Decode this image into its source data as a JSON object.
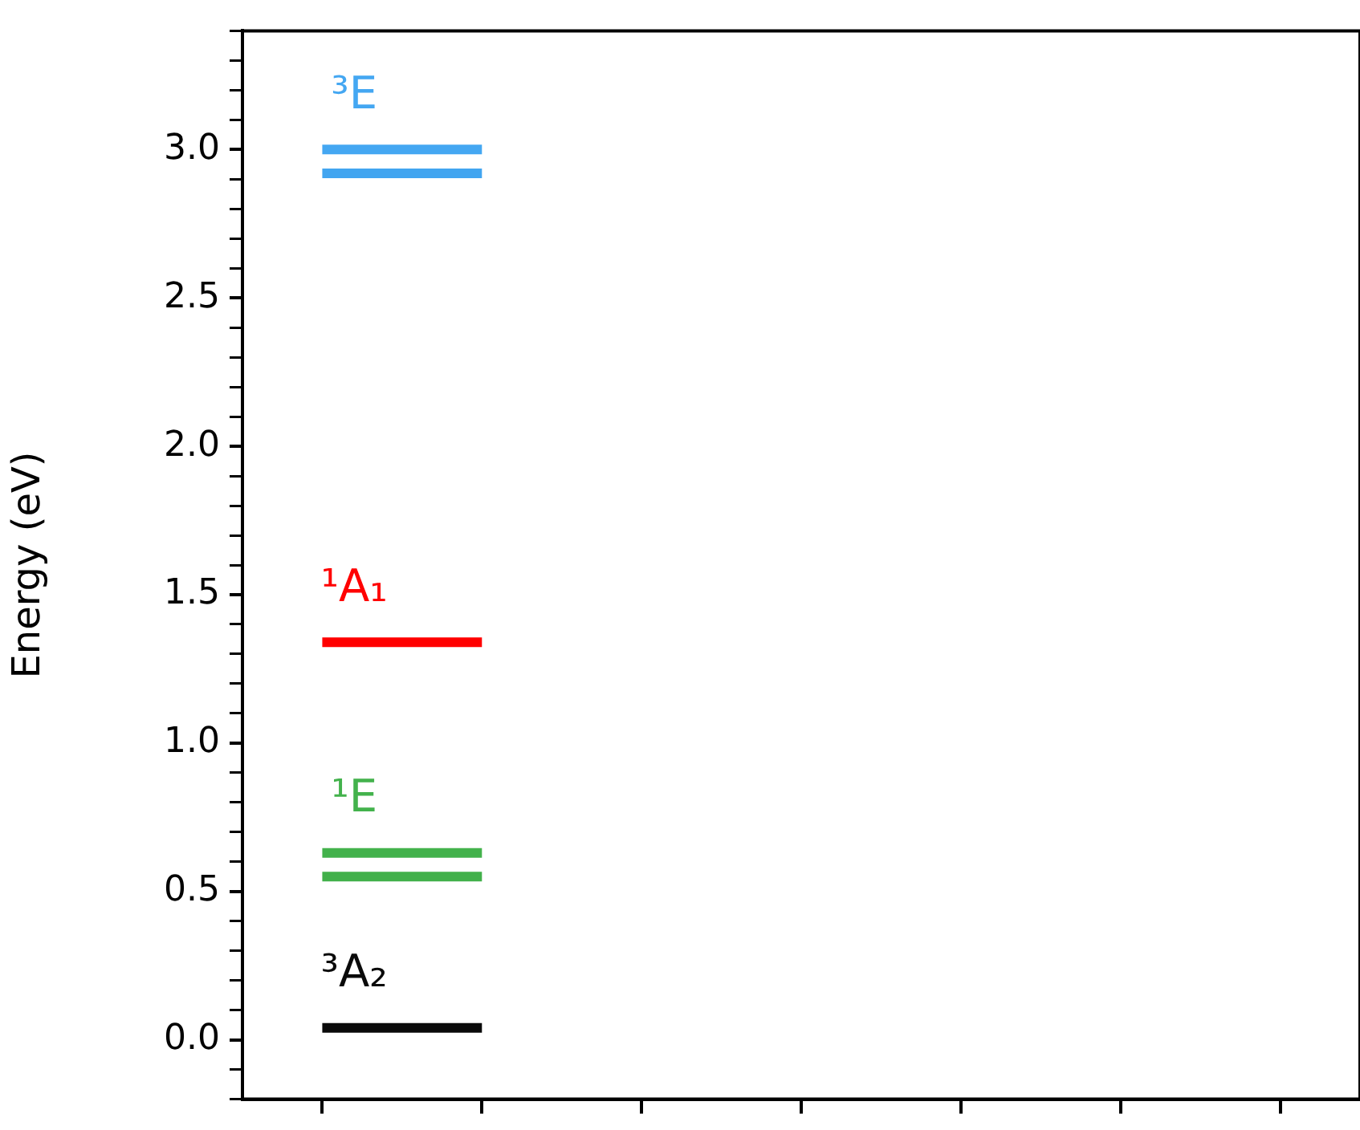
{
  "chart_data": {
    "type": "line",
    "ylabel": "Energy (eV)",
    "ylim": [
      -0.2,
      3.4
    ],
    "categories": [
      null,
      null,
      null,
      null,
      null,
      null,
      null
    ],
    "yticks": [
      {
        "value": -0.2,
        "label": null
      },
      {
        "value": -0.1,
        "label": null
      },
      {
        "value": 0,
        "label": "0.0"
      },
      {
        "value": 0.1,
        "label": null
      },
      {
        "value": 0.2,
        "label": null
      },
      {
        "value": 0.3,
        "label": null
      },
      {
        "value": 0.4,
        "label": null
      },
      0.5,
      {
        "value": 0.6,
        "label": null
      },
      {
        "value": 0.7,
        "label": null
      },
      {
        "value": 0.8,
        "label": null
      },
      {
        "value": 0.9,
        "label": null
      },
      {
        "value": 1,
        "label": "1.0"
      },
      {
        "value": 1.1,
        "label": null
      },
      {
        "value": 1.2,
        "label": null
      },
      {
        "value": 1.3,
        "label": null
      },
      {
        "value": 1.4,
        "label": null
      },
      1.5,
      {
        "value": 1.6,
        "label": null
      },
      {
        "value": 1.7,
        "label": null
      },
      {
        "value": 1.8,
        "label": null
      },
      {
        "value": 1.9,
        "label": null
      },
      {
        "value": 2,
        "label": "2.0"
      },
      {
        "value": 2.1,
        "label": null
      },
      {
        "value": 2.2,
        "label": null
      },
      {
        "value": 2.3,
        "label": null
      },
      {
        "value": 2.4,
        "label": null
      },
      2.5,
      {
        "value": 2.6,
        "label": null
      },
      {
        "value": 2.7,
        "label": null
      },
      {
        "value": 2.8,
        "label": null
      },
      {
        "value": 2.9,
        "label": null
      },
      {
        "value": 3,
        "label": "3.0"
      },
      {
        "value": 3.1,
        "label": null
      },
      {
        "value": 3.2,
        "label": null
      },
      {
        "value": 3.3,
        "label": null
      },
      {
        "value": 3.4,
        "label": null
      }
    ],
    "tick_labels": "y",
    "marker": "none",
    "series": [
      {
        "color": "#0a0a0a",
        "values": [
          0.04,
          0.04,
          null,
          null,
          null,
          null,
          null
        ]
      },
      {
        "color": "#43b24c",
        "values": [
          0.63,
          0.63,
          null,
          null,
          null,
          null,
          null
        ]
      },
      {
        "color": "#41b04a",
        "values": [
          0.55,
          0.55,
          null,
          null,
          null,
          null,
          null
        ]
      },
      {
        "color": "#ff0000",
        "values": [
          1.34,
          1.34,
          null,
          null,
          null,
          null,
          null
        ]
      },
      {
        "color": "#44a7f2",
        "values": [
          3.0,
          3.0,
          null,
          null,
          null,
          null,
          null
        ]
      },
      {
        "color": "#42a5f0",
        "values": [
          2.92,
          2.92,
          null,
          null,
          null,
          null,
          null
        ]
      }
    ],
    "annotations": [
      "³A₂",
      "¹E",
      "¹A₁",
      "³E"
    ]
  }
}
